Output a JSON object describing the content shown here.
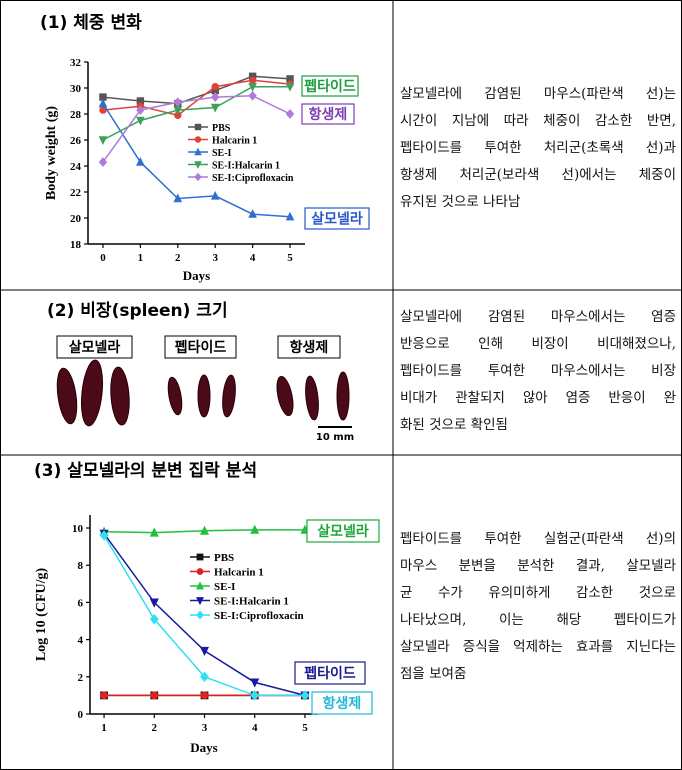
{
  "table": {
    "rows": [
      {
        "heading": "(1) 체중 변화",
        "description": [
          "살모넬라에 감염된 마우스(파란색 선)는",
          "시간이 지남에 따라 체중이 감소한 반면,",
          "펩타이드를 투여한 처리군(초록색 선)과",
          "항생제 처리군(보라색 선)에서는 체중이",
          "유지된 것으로 나타남"
        ]
      },
      {
        "heading": "(2) 비장(spleen) 크기",
        "labels": [
          "살모넬라",
          "펩타이드",
          "항생제"
        ],
        "scale_bar": "10 mm",
        "description": [
          "살모넬라에 감염된 마우스에서는 염증",
          "반응으로 인해 비장이 비대해졌으나,",
          "펩타이드를 투여한 마우스에서는 비장",
          "비대가 관찰되지 않아 염증 반응이 완",
          "화된 것으로 확인됨"
        ]
      },
      {
        "heading": "(3) 살모넬라의 분변 집락 분석",
        "description": [
          "펩타이드를 투여한 실험군(파란색 선)의",
          "마우스 분변을 분석한 결과, 살모넬라",
          "균 수가 유의미하게 감소한 것으로",
          "나타났으며, 이는 해당 펩타이드가",
          "살모넬라 증식을 억제하는 효과를 지닌다는",
          "점을 보여줌"
        ]
      }
    ]
  },
  "chart_data": [
    {
      "type": "line",
      "xlabel": "Days",
      "ylabel": "Body weight (g)",
      "x": [
        0,
        1,
        2,
        3,
        4,
        5
      ],
      "xlim": [
        -0.4,
        5.4
      ],
      "xticks": [
        0,
        1,
        2,
        3,
        4,
        5
      ],
      "ylim": [
        18,
        32
      ],
      "yticks": [
        18,
        20,
        22,
        24,
        26,
        28,
        30,
        32
      ],
      "legend": "upper center",
      "series": [
        {
          "name": "PBS",
          "color": "#555555",
          "marker": "square",
          "values": [
            29.3,
            29.0,
            28.8,
            29.8,
            30.9,
            30.7
          ]
        },
        {
          "name": "Halcarin 1",
          "color": "#e0403a",
          "marker": "circle",
          "values": [
            28.3,
            28.6,
            27.9,
            30.1,
            30.6,
            30.3
          ]
        },
        {
          "name": "SE-I",
          "color": "#2f6fd0",
          "marker": "triangle-up",
          "values": [
            28.8,
            24.3,
            21.5,
            21.7,
            20.3,
            20.1
          ]
        },
        {
          "name": "SE-I:Halcarin 1",
          "color": "#3aa05a",
          "marker": "triangle-down",
          "values": [
            26.0,
            27.5,
            28.3,
            28.5,
            30.1,
            30.1
          ]
        },
        {
          "name": "SE-I:Ciprofloxacin",
          "color": "#b07ad8",
          "marker": "diamond",
          "values": [
            24.3,
            28.3,
            28.9,
            29.3,
            29.4,
            28.0
          ]
        }
      ],
      "annotations": [
        {
          "text": "펩타이드",
          "color": "#1e9e3e"
        },
        {
          "text": "항생제",
          "color": "#7a3fb0"
        },
        {
          "text": "살모넬라",
          "color": "#2a58c8"
        }
      ]
    },
    {
      "type": "line",
      "xlabel": "Days",
      "ylabel": "Log 10 (CFU/g)",
      "x": [
        1,
        2,
        3,
        4,
        5
      ],
      "xlim": [
        0.72,
        5.26
      ],
      "xticks": [
        1,
        2,
        3,
        4,
        5
      ],
      "ylim": [
        0,
        10.7
      ],
      "yticks": [
        0,
        2,
        4,
        6,
        8,
        10
      ],
      "legend": "upper center",
      "series": [
        {
          "name": "PBS",
          "color": "#111111",
          "marker": "square",
          "values": [
            1,
            1,
            1,
            1,
            1
          ]
        },
        {
          "name": "Halcarin 1",
          "color": "#e02020",
          "marker": "circle",
          "values": [
            1,
            1,
            1,
            1,
            1
          ]
        },
        {
          "name": "SE-I",
          "color": "#22c040",
          "marker": "triangle-up",
          "values": [
            9.8,
            9.75,
            9.85,
            9.9,
            9.9
          ]
        },
        {
          "name": "SE-I:Halcarin 1",
          "color": "#1a1aa0",
          "marker": "triangle-down",
          "values": [
            9.7,
            6.0,
            3.4,
            1.7,
            1.0
          ]
        },
        {
          "name": "SE-I:Ciprofloxacin",
          "color": "#30e0f0",
          "marker": "diamond",
          "values": [
            9.6,
            5.1,
            2.0,
            1.0,
            1.0
          ]
        }
      ],
      "annotations": [
        {
          "text": "살모넬라",
          "color": "#1ea83a"
        },
        {
          "text": "펩타이드",
          "color": "#1a1a90"
        },
        {
          "text": "항생제",
          "color": "#20b8d8"
        }
      ]
    }
  ]
}
